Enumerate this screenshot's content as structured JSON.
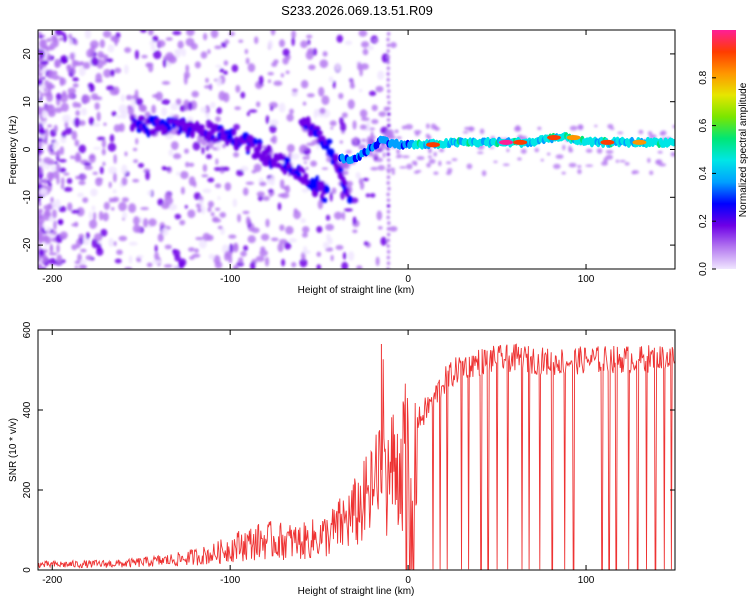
{
  "title": "S233.2026.069.13.51.R09",
  "chart_data": [
    {
      "type": "heatmap",
      "name": "spectrogram",
      "xlabel": "Height of straight line (km)",
      "ylabel": "Frequency (Hz)",
      "xlim": [
        -208,
        150
      ],
      "ylim": [
        -25,
        25
      ],
      "xticks": [
        -200,
        -100,
        0,
        100
      ],
      "yticks": [
        -20,
        -10,
        0,
        10,
        20
      ],
      "colorbar": {
        "label": "Normalized spectral amplitude",
        "range": [
          0,
          1
        ],
        "ticks": [
          "0.0",
          "0.2",
          "0.4",
          "0.6",
          "0.8"
        ],
        "tick_values": [
          0.0,
          0.2,
          0.4,
          0.6,
          0.8
        ],
        "colormap": [
          "#f0e6ff",
          "#b478f0",
          "#6e00e6",
          "#0000ff",
          "#00a0ff",
          "#00e6e6",
          "#00e676",
          "#7ae600",
          "#e6e600",
          "#ff9600",
          "#ff3c00",
          "#ff1e96"
        ]
      },
      "features": {
        "main_trace": [
          {
            "x": -155,
            "y": 5
          },
          {
            "x": -130,
            "y": 5
          },
          {
            "x": -115,
            "y": 4
          },
          {
            "x": -100,
            "y": 3
          },
          {
            "x": -90,
            "y": 1
          },
          {
            "x": -80,
            "y": -1
          },
          {
            "x": -70,
            "y": -3
          },
          {
            "x": -60,
            "y": -5
          },
          {
            "x": -55,
            "y": -7
          },
          {
            "x": -50,
            "y": -8
          },
          {
            "x": -45,
            "y": -10
          }
        ],
        "second_trace": [
          {
            "x": -60,
            "y": 6
          },
          {
            "x": -52,
            "y": 4
          },
          {
            "x": -45,
            "y": 1
          },
          {
            "x": -40,
            "y": -3
          },
          {
            "x": -36,
            "y": -7
          },
          {
            "x": -32,
            "y": -11
          }
        ],
        "carrier_line": [
          {
            "x": -38,
            "y": -2
          },
          {
            "x": -30,
            "y": -2
          },
          {
            "x": -22,
            "y": 0
          },
          {
            "x": -15,
            "y": 2
          },
          {
            "x": -5,
            "y": 1
          },
          {
            "x": 10,
            "y": 1
          },
          {
            "x": 30,
            "y": 1.5
          },
          {
            "x": 50,
            "y": 1.5
          },
          {
            "x": 70,
            "y": 1.5
          },
          {
            "x": 80,
            "y": 2.5
          },
          {
            "x": 90,
            "y": 2.5
          },
          {
            "x": 100,
            "y": 1.5
          },
          {
            "x": 120,
            "y": 1.5
          },
          {
            "x": 150,
            "y": 1.5
          }
        ],
        "strong_spots": [
          {
            "x": 14,
            "y": 1,
            "level": 0.95
          },
          {
            "x": 55,
            "y": 1.5,
            "level": 1.0
          },
          {
            "x": 63,
            "y": 1.5,
            "level": 0.95
          },
          {
            "x": 82,
            "y": 2.5,
            "level": 0.95
          },
          {
            "x": 93,
            "y": 2.5,
            "level": 0.85
          },
          {
            "x": 112,
            "y": 1.5,
            "level": 0.9
          },
          {
            "x": 130,
            "y": 1.5,
            "level": 0.85
          }
        ],
        "vertical_stripe_x": -11
      }
    },
    {
      "type": "line",
      "name": "snr",
      "xlabel": "Height of straight line (km)",
      "ylabel": "SNR (10 * v/v)",
      "xlim": [
        -208,
        150
      ],
      "ylim": [
        0,
        600
      ],
      "xticks": [
        -200,
        -100,
        0,
        100
      ],
      "yticks": [
        0,
        200,
        400,
        600
      ],
      "color": "#ee3333",
      "envelope": [
        {
          "x": -208,
          "y": 15
        },
        {
          "x": -160,
          "y": 18
        },
        {
          "x": -130,
          "y": 30
        },
        {
          "x": -110,
          "y": 45
        },
        {
          "x": -95,
          "y": 70
        },
        {
          "x": -80,
          "y": 85
        },
        {
          "x": -60,
          "y": 80
        },
        {
          "x": -45,
          "y": 100
        },
        {
          "x": -30,
          "y": 160
        },
        {
          "x": -20,
          "y": 220
        },
        {
          "x": -10,
          "y": 280
        },
        {
          "x": 0,
          "y": 330
        },
        {
          "x": 10,
          "y": 400
        },
        {
          "x": 20,
          "y": 470
        },
        {
          "x": 30,
          "y": 510
        },
        {
          "x": 45,
          "y": 525
        },
        {
          "x": 60,
          "y": 530
        },
        {
          "x": 80,
          "y": 520
        },
        {
          "x": 100,
          "y": 525
        },
        {
          "x": 150,
          "y": 530
        }
      ],
      "peaks": [
        {
          "x": -15,
          "y": 565
        }
      ],
      "dropouts_x": [
        -1,
        1,
        2,
        3,
        14,
        18,
        22,
        30,
        34,
        41,
        45,
        50,
        56,
        64,
        68,
        74,
        81,
        88,
        93,
        109,
        113,
        117,
        124,
        129,
        134,
        139,
        144,
        148
      ]
    }
  ]
}
